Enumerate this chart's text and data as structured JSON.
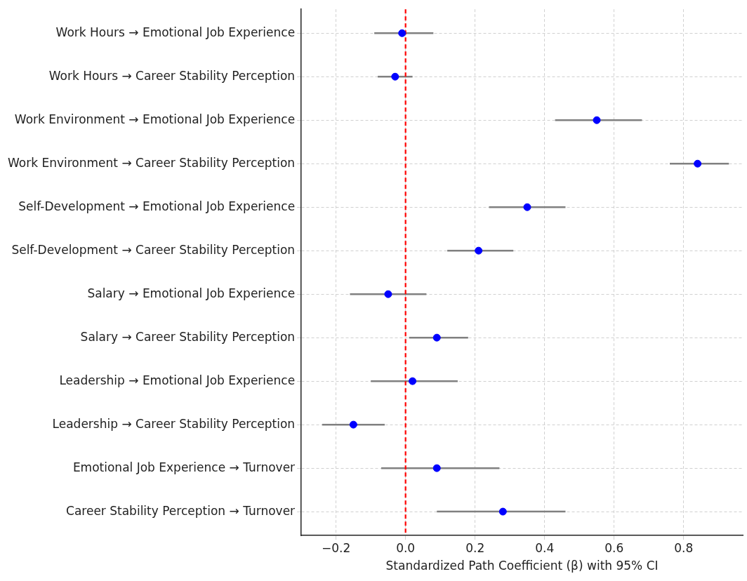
{
  "chart_data": {
    "type": "scatter",
    "orientation": "horizontal",
    "categories": [
      "Work Hours → Emotional Job Experience",
      "Work Hours → Career Stability Perception",
      "Work Environment → Emotional Job Experience",
      "Work Environment → Career Stability Perception",
      "Self-Development → Emotional Job Experience",
      "Self-Development → Career Stability Perception",
      "Salary → Emotional Job Experience",
      "Salary → Career Stability Perception",
      "Leadership → Emotional Job Experience",
      "Leadership → Career Stability Perception",
      "Emotional Job Experience → Turnover",
      "Career Stability Perception → Turnover"
    ],
    "color": "#0000ff",
    "values": [
      -0.01,
      -0.03,
      0.55,
      0.84,
      0.35,
      0.21,
      -0.05,
      0.09,
      0.02,
      -0.15,
      0.09,
      0.28
    ],
    "errors": [
      [
        -0.09,
        0.08
      ],
      [
        -0.08,
        0.02
      ],
      [
        0.43,
        0.68
      ],
      [
        0.76,
        0.93
      ],
      [
        0.24,
        0.46
      ],
      [
        0.12,
        0.31
      ],
      [
        -0.16,
        0.06
      ],
      [
        0.01,
        0.18
      ],
      [
        -0.1,
        0.15
      ],
      [
        -0.24,
        -0.06
      ],
      [
        -0.07,
        0.27
      ],
      [
        0.09,
        0.46
      ]
    ],
    "xlabel": "Standardized Path Coefficient (β) with 95% CI",
    "xlim": [
      -0.3,
      0.97
    ],
    "xticks": [
      {
        "value": -0.2,
        "label": "−0.2"
      },
      {
        "value": 0,
        "label": "0.0"
      },
      {
        "value": 0.2,
        "label": "0.2"
      },
      {
        "value": 0.4,
        "label": "0.4"
      },
      {
        "value": 0.6,
        "label": "0.6"
      },
      {
        "value": 0.8,
        "label": "0.8"
      }
    ],
    "ref_lines": [
      {
        "axis": "x",
        "value": 0,
        "color": "#ff0000",
        "line_style": "dashed"
      }
    ],
    "grid": true,
    "marker": "circle"
  }
}
